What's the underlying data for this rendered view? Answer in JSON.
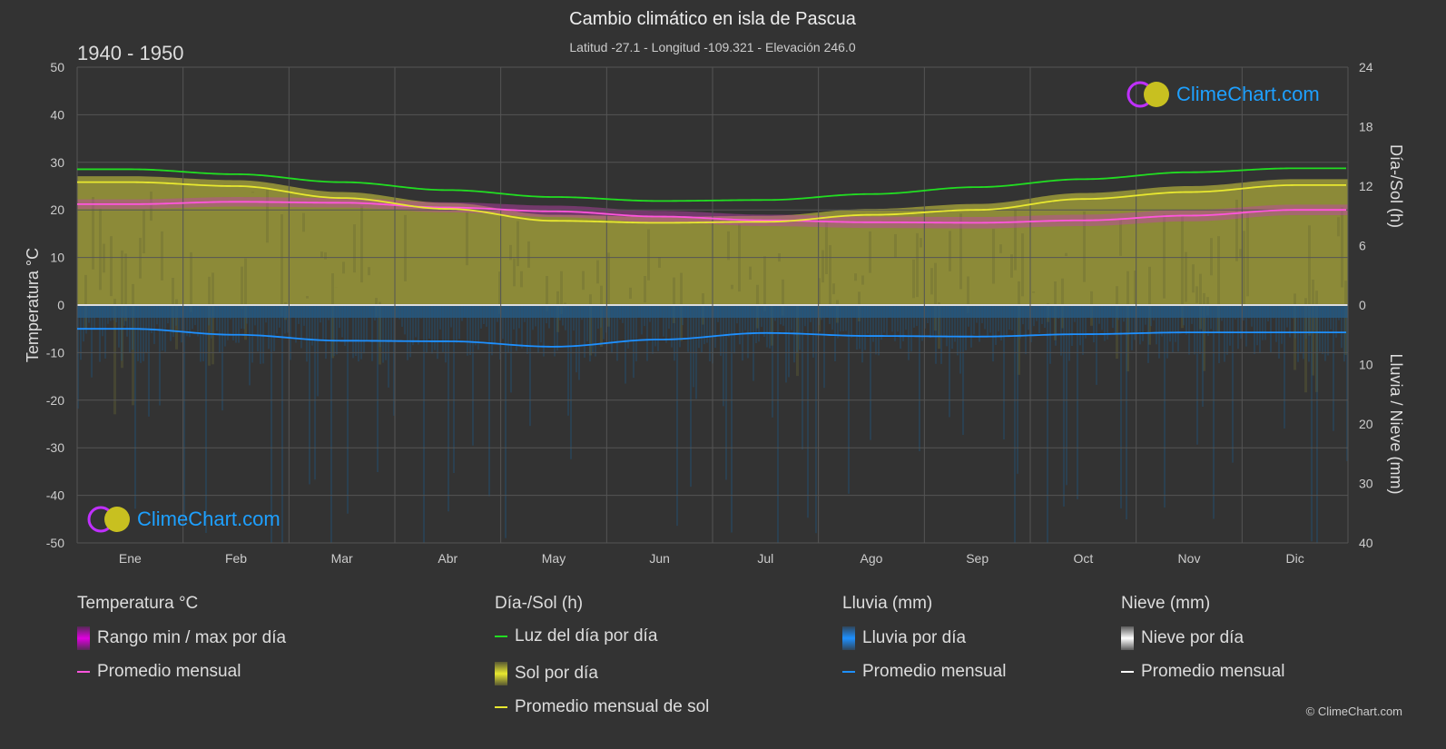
{
  "header": {
    "title": "Cambio climático en isla de Pascua",
    "subtitle": "Latitud -27.1 - Longitud -109.321 - Elevación 246.0",
    "period": "1940 - 1950"
  },
  "logo_text": "ClimeChart.com",
  "copyright": "© ClimeChart.com",
  "chart_data": {
    "type": "line",
    "categories": [
      "Ene",
      "Feb",
      "Mar",
      "Abr",
      "May",
      "Jun",
      "Jul",
      "Ago",
      "Sep",
      "Oct",
      "Nov",
      "Dic"
    ],
    "left_axis": {
      "label": "Temperatura °C",
      "range": [
        -50,
        50
      ],
      "ticks": [
        50,
        40,
        30,
        20,
        10,
        0,
        -10,
        -20,
        -30,
        -40,
        -50
      ]
    },
    "right_axis_top": {
      "label": "Día-/Sol (h)",
      "range": [
        0,
        24
      ],
      "ticks": [
        24,
        18,
        12,
        6,
        0
      ]
    },
    "right_axis_bottom": {
      "label": "Lluvia / Nieve (mm)",
      "range": [
        0,
        40
      ],
      "ticks": [
        0,
        10,
        20,
        30,
        40
      ]
    },
    "grid": true,
    "series": [
      {
        "name": "Promedio mensual",
        "group": "Temperatura °C",
        "axis": "temp",
        "color": "#ff55dd",
        "values": [
          21.2,
          21.7,
          21.5,
          20.5,
          19.7,
          18.6,
          17.8,
          17.4,
          17.3,
          17.8,
          18.8,
          20.0
        ]
      },
      {
        "name": "Rango min / max por día",
        "group": "Temperatura °C",
        "axis": "temp",
        "color": "#e000e0",
        "min": [
          20.2,
          20.7,
          20.5,
          19.5,
          18.5,
          17.4,
          16.6,
          16.2,
          16.1,
          16.6,
          17.6,
          18.9
        ],
        "max": [
          22.2,
          22.7,
          22.5,
          21.6,
          20.9,
          19.8,
          19.0,
          18.6,
          18.5,
          19.0,
          20.0,
          21.1
        ]
      },
      {
        "name": "Luz del día por día",
        "group": "Día-/Sol (h)",
        "axis": "hours",
        "color": "#22dd22",
        "values": [
          13.7,
          13.2,
          12.4,
          11.6,
          10.9,
          10.5,
          10.6,
          11.2,
          11.9,
          12.7,
          13.4,
          13.8
        ]
      },
      {
        "name": "Promedio mensual de sol",
        "group": "Día-/Sol (h)",
        "axis": "hours",
        "color": "#e8e830",
        "values": [
          12.4,
          12.0,
          10.8,
          9.7,
          8.5,
          8.3,
          8.4,
          9.1,
          9.6,
          10.7,
          11.4,
          12.1
        ]
      },
      {
        "name": "Promedio mensual",
        "group": "Lluvia (mm)",
        "axis": "rain",
        "color": "#1e90ff",
        "values": [
          4.0,
          5.0,
          6.0,
          6.1,
          7.0,
          5.8,
          4.7,
          5.2,
          5.3,
          4.9,
          4.6,
          4.6
        ]
      }
    ]
  },
  "legend": {
    "groups": [
      {
        "title": "Temperatura °C",
        "items": [
          {
            "label": "Rango min / max por día",
            "swatch": "box",
            "color": "#e000e0"
          },
          {
            "label": "Promedio mensual",
            "swatch": "line",
            "color": "#ff55dd"
          }
        ]
      },
      {
        "title": "Día-/Sol (h)",
        "items": [
          {
            "label": "Luz del día por día",
            "swatch": "line",
            "color": "#22dd22"
          },
          {
            "label": "Sol por día",
            "swatch": "box",
            "color": "#e8e830"
          },
          {
            "label": "Promedio mensual de sol",
            "swatch": "line",
            "color": "#e8e830"
          }
        ]
      },
      {
        "title": "Lluvia (mm)",
        "items": [
          {
            "label": "Lluvia por día",
            "swatch": "box",
            "color": "#1e90ff"
          },
          {
            "label": "Promedio mensual",
            "swatch": "line",
            "color": "#1e90ff"
          }
        ]
      },
      {
        "title": "Nieve (mm)",
        "items": [
          {
            "label": "Nieve por día",
            "swatch": "box",
            "color": "#ffffff"
          },
          {
            "label": "Promedio mensual",
            "swatch": "line",
            "color": "#ffffff"
          }
        ]
      }
    ]
  }
}
